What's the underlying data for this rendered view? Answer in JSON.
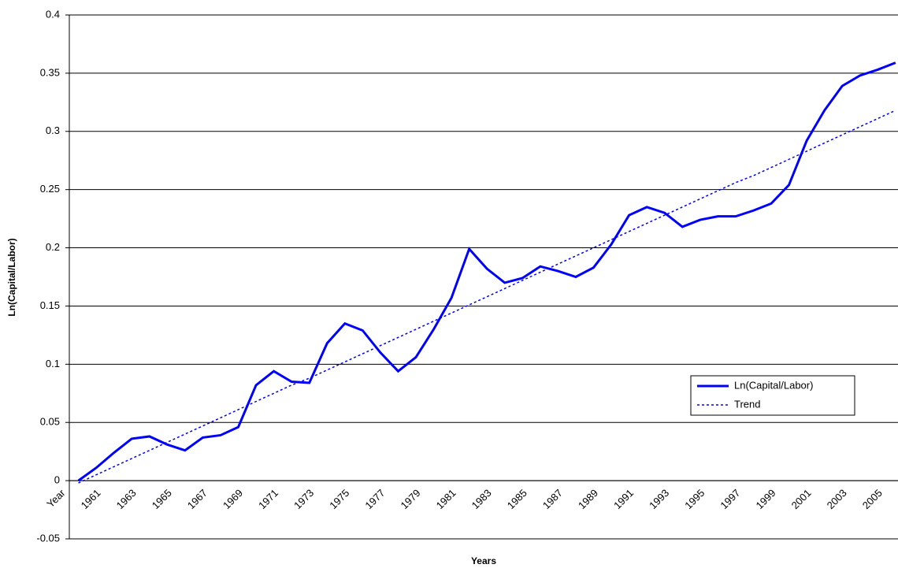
{
  "chart_data": {
    "type": "line",
    "y_label": "Ln(Capital/Labor)",
    "x_label": "Years",
    "categories": [
      "Year",
      null,
      "1961",
      null,
      "1963",
      null,
      "1965",
      null,
      "1967",
      null,
      "1969",
      null,
      "1971",
      null,
      "1973",
      null,
      "1975",
      null,
      "1977",
      null,
      "1979",
      null,
      "1981",
      null,
      "1983",
      null,
      "1985",
      null,
      "1987",
      null,
      "1989",
      null,
      "1991",
      null,
      "1993",
      null,
      "1995",
      null,
      "1997",
      null,
      "1999",
      null,
      "2001",
      null,
      "2003",
      null,
      "2005",
      null
    ],
    "series": [
      {
        "name": "Ln(Capital/Labor)",
        "color": "#0000ff",
        "style": "solid",
        "values": [
          null,
          0,
          0.011,
          0.024,
          0.036,
          0.038,
          0.031,
          0.026,
          0.037,
          0.039,
          0.046,
          0.082,
          0.094,
          0.085,
          0.084,
          0.118,
          0.135,
          0.129,
          0.11,
          0.094,
          0.106,
          0.13,
          0.157,
          0.199,
          0.182,
          0.17,
          0.174,
          0.184,
          0.18,
          0.175,
          0.183,
          0.203,
          0.228,
          0.235,
          0.23,
          0.218,
          0.224,
          0.227,
          0.227,
          0.232,
          0.238,
          0.254,
          0.292,
          0.318,
          0.339,
          0.348,
          0.353,
          0.359
        ]
      },
      {
        "name": "Trend",
        "color": "#0000ff",
        "style": "dotted",
        "values": [
          null,
          -0.002,
          0.005,
          0.012,
          0.019,
          0.026,
          0.033,
          0.04,
          0.047,
          0.054,
          0.061,
          0.068,
          0.075,
          0.082,
          0.088,
          0.095,
          0.102,
          0.109,
          0.116,
          0.123,
          0.13,
          0.137,
          0.144,
          0.151,
          0.158,
          0.165,
          0.172,
          0.179,
          0.186,
          0.193,
          0.2,
          0.207,
          0.214,
          0.221,
          0.228,
          0.235,
          0.242,
          0.249,
          0.256,
          0.262,
          0.269,
          0.276,
          0.283,
          0.29,
          0.297,
          0.304,
          0.311,
          0.318
        ]
      }
    ],
    "ylim": [
      -0.05,
      0.4
    ],
    "yticks": [
      -0.05,
      0,
      0.05,
      0.1,
      0.15,
      0.2,
      0.25,
      0.3,
      0.35,
      0.4
    ],
    "grid": true,
    "legend": "right"
  }
}
